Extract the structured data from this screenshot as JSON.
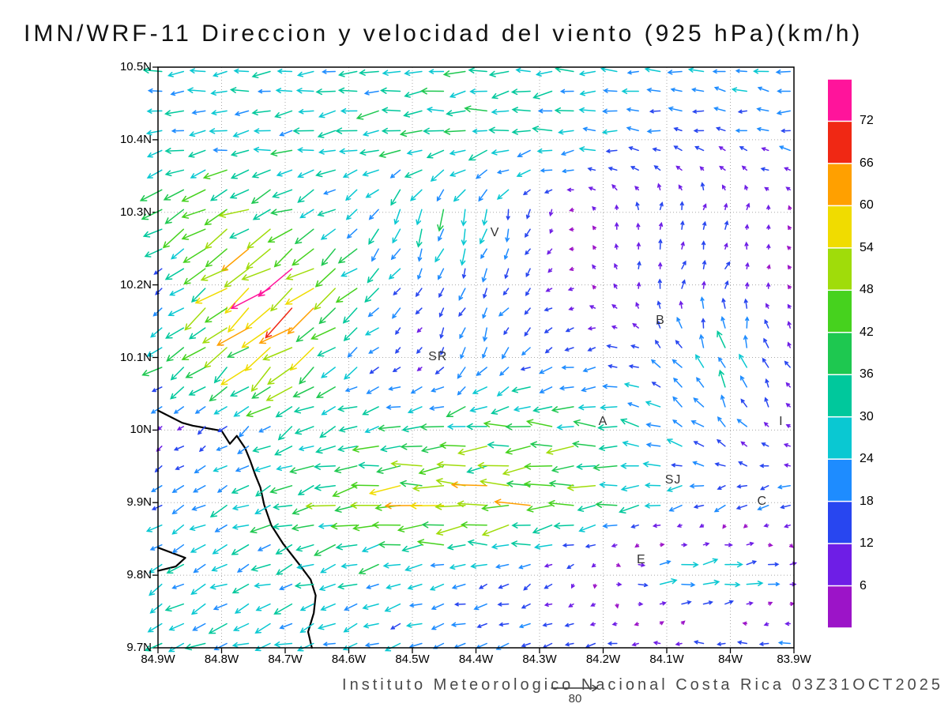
{
  "chart": {
    "title": "IMN/WRF-11 Direccion y velocidad del viento (925 hPa)(km/h)",
    "footer": "Instituto Meteorologico Nacional Costa Rica 03Z31OCT2025",
    "reference_vector": {
      "value_kmh": 80,
      "label": "80"
    }
  },
  "chart_data": {
    "type": "quiver",
    "title": "IMN/WRF-11 Direccion y velocidad del viento (925 hPa)(km/h)",
    "model": "IMN/WRF-11",
    "variable": "Direccion y velocidad del viento",
    "level": "925 hPa",
    "units": "km/h",
    "valid_time": "03Z31OCT2025",
    "lon_range_w": [
      84.9,
      83.9
    ],
    "lat_range_n": [
      10.5,
      9.7
    ],
    "lon_ticks": [
      {
        "label": "84.9W",
        "value": 84.9
      },
      {
        "label": "84.8W",
        "value": 84.8
      },
      {
        "label": "84.7W",
        "value": 84.7
      },
      {
        "label": "84.6W",
        "value": 84.6
      },
      {
        "label": "84.5W",
        "value": 84.5
      },
      {
        "label": "84.4W",
        "value": 84.4
      },
      {
        "label": "84.3W",
        "value": 84.3
      },
      {
        "label": "84.2W",
        "value": 84.2
      },
      {
        "label": "84.1W",
        "value": 84.1
      },
      {
        "label": "84W",
        "value": 84.0
      },
      {
        "label": "83.9W",
        "value": 83.9
      }
    ],
    "lat_ticks": [
      {
        "label": "10.5N",
        "value": 10.5
      },
      {
        "label": "10.4N",
        "value": 10.4
      },
      {
        "label": "10.3N",
        "value": 10.3
      },
      {
        "label": "10.2N",
        "value": 10.2
      },
      {
        "label": "10.1N",
        "value": 10.1
      },
      {
        "label": "10N",
        "value": 10.0
      },
      {
        "label": "9.9N",
        "value": 9.9
      },
      {
        "label": "9.8N",
        "value": 9.8
      },
      {
        "label": "9.7N",
        "value": 9.7
      }
    ],
    "colorbar": {
      "levels": [
        6,
        12,
        18,
        24,
        30,
        36,
        42,
        48,
        54,
        60,
        66,
        72
      ],
      "colors": [
        "#9c14c8",
        "#6e1ee6",
        "#2846f0",
        "#1e8cff",
        "#0ac8d2",
        "#00c89c",
        "#1ec850",
        "#46d21e",
        "#a0dc0a",
        "#f0dc00",
        "#ffa000",
        "#f02814",
        "#ff149b"
      ]
    },
    "stations": [
      {
        "label": "V",
        "lon_w": 84.37,
        "lat_n": 10.27
      },
      {
        "label": "B",
        "lon_w": 84.11,
        "lat_n": 10.15
      },
      {
        "label": "SR",
        "lon_w": 84.46,
        "lat_n": 10.1
      },
      {
        "label": "A",
        "lon_w": 84.2,
        "lat_n": 10.01
      },
      {
        "label": "SJ",
        "lon_w": 84.09,
        "lat_n": 9.93
      },
      {
        "label": "C",
        "lon_w": 83.95,
        "lat_n": 9.9
      },
      {
        "label": "E",
        "lon_w": 84.14,
        "lat_n": 9.82
      },
      {
        "label": "I",
        "lon_w": 83.92,
        "lat_n": 10.01
      }
    ],
    "coastline": [
      [
        [
          84.9,
          10.027
        ],
        [
          84.862,
          10.01
        ],
        [
          84.845,
          10.006
        ],
        [
          84.8,
          9.999
        ],
        [
          84.787,
          9.981
        ],
        [
          84.776,
          9.992
        ],
        [
          84.763,
          9.975
        ],
        [
          84.755,
          9.958
        ],
        [
          84.747,
          9.938
        ],
        [
          84.739,
          9.921
        ],
        [
          84.733,
          9.897
        ],
        [
          84.722,
          9.869
        ],
        [
          84.703,
          9.843
        ],
        [
          84.678,
          9.815
        ],
        [
          84.66,
          9.794
        ],
        [
          84.652,
          9.772
        ],
        [
          84.655,
          9.748
        ],
        [
          84.664,
          9.722
        ],
        [
          84.658,
          9.7
        ]
      ],
      [
        [
          84.9,
          9.838
        ],
        [
          84.857,
          9.824
        ],
        [
          84.872,
          9.812
        ],
        [
          84.9,
          9.806
        ]
      ]
    ],
    "wind_grid": {
      "lons_w": [
        84.9,
        84.8,
        84.7,
        84.6,
        84.5,
        84.4,
        84.3,
        84.2,
        84.1,
        84.0,
        83.9
      ],
      "lats_n": [
        10.5,
        10.4,
        10.3,
        10.2,
        10.1,
        10.0,
        9.9,
        9.8,
        9.7
      ],
      "u_kmh": [
        [
          -26,
          -27,
          -25,
          -28,
          -30,
          -31,
          -29,
          -26,
          -24,
          -22,
          -24
        ],
        [
          -24,
          -26,
          -28,
          -32,
          -34,
          -33,
          -30,
          -24,
          -16,
          -14,
          -18
        ],
        [
          -36,
          -40,
          -34,
          -18,
          -8,
          -6,
          -4,
          -2,
          2,
          3,
          -2
        ],
        [
          -8,
          -42,
          -55,
          -34,
          -10,
          -7,
          -9,
          -4,
          3,
          4,
          -3
        ],
        [
          -28,
          -36,
          -48,
          -20,
          -5,
          -8,
          -14,
          -16,
          -12,
          -10,
          -6
        ],
        [
          -7,
          -12,
          -26,
          -30,
          -34,
          -38,
          -42,
          -36,
          -22,
          -12,
          -5
        ],
        [
          -18,
          -24,
          -32,
          -44,
          -54,
          -57,
          -50,
          -38,
          -27,
          -17,
          -20
        ],
        [
          -22,
          -24,
          -26,
          -27,
          -24,
          -19,
          -12,
          4,
          32,
          34,
          14
        ],
        [
          -26,
          -27,
          -25,
          -23,
          -21,
          -19,
          -17,
          -15,
          -13,
          -17,
          -21
        ]
      ],
      "v_kmh": [
        [
          -2,
          -3,
          -2,
          -3,
          -3,
          -2,
          -2,
          0,
          1,
          2,
          0
        ],
        [
          -3,
          -4,
          -4,
          -4,
          -4,
          -3,
          -2,
          0,
          3,
          4,
          2
        ],
        [
          -22,
          -24,
          -18,
          -14,
          -30,
          -30,
          -12,
          8,
          13,
          11,
          4
        ],
        [
          -6,
          -30,
          -44,
          -28,
          -12,
          -18,
          -9,
          7,
          14,
          12,
          3
        ],
        [
          -18,
          -26,
          -34,
          -16,
          -5,
          -22,
          -10,
          -4,
          12,
          28,
          10
        ],
        [
          -5,
          -9,
          -13,
          -9,
          -5,
          -3,
          -2,
          0,
          10,
          16,
          3
        ],
        [
          -11,
          -12,
          -10,
          -6,
          -2,
          0,
          -1,
          -4,
          -6,
          -8,
          -5
        ],
        [
          -14,
          -13,
          -11,
          -9,
          -7,
          -5,
          -7,
          -4,
          5,
          6,
          2
        ],
        [
          -12,
          -12,
          -11,
          -9,
          -8,
          -6,
          -4,
          -2,
          -1,
          -2,
          -3
        ]
      ]
    }
  }
}
